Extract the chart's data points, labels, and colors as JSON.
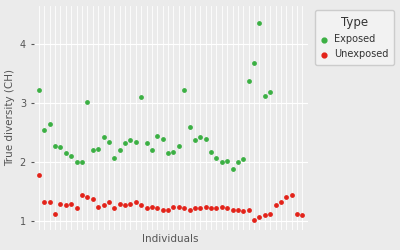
{
  "exposed_x": [
    1,
    2,
    3,
    4,
    5,
    6,
    7,
    8,
    9,
    10,
    11,
    12,
    13,
    14,
    15,
    16,
    17,
    18,
    19,
    20,
    21,
    22,
    23,
    24,
    25,
    26,
    27,
    28,
    29,
    30,
    31,
    32,
    33,
    34,
    35,
    36,
    37,
    38,
    39,
    40,
    41,
    42,
    43,
    44
  ],
  "exposed_y": [
    3.22,
    2.55,
    2.65,
    2.28,
    2.25,
    2.15,
    2.1,
    2.0,
    2.0,
    3.02,
    2.2,
    2.22,
    2.42,
    2.35,
    2.08,
    2.2,
    2.32,
    2.38,
    2.35,
    3.1,
    2.32,
    2.2,
    2.45,
    2.4,
    2.15,
    2.18,
    2.28,
    3.22,
    2.6,
    2.38,
    2.42,
    2.4,
    2.18,
    2.08,
    2.0,
    2.02,
    1.88,
    2.0,
    2.05,
    3.38,
    3.68,
    4.35,
    3.12,
    3.18
  ],
  "unexposed_x": [
    1,
    2,
    3,
    4,
    5,
    6,
    7,
    8,
    9,
    10,
    11,
    12,
    13,
    14,
    15,
    16,
    17,
    18,
    19,
    20,
    21,
    22,
    23,
    24,
    25,
    26,
    27,
    28,
    29,
    30,
    31,
    32,
    33,
    34,
    35,
    36,
    37,
    38,
    39,
    40,
    41,
    42,
    43,
    44,
    45,
    46,
    47,
    48,
    49,
    50
  ],
  "unexposed_y": [
    1.78,
    1.32,
    1.32,
    1.12,
    1.3,
    1.28,
    1.3,
    1.22,
    1.45,
    1.42,
    1.38,
    1.25,
    1.28,
    1.32,
    1.22,
    1.3,
    1.28,
    1.3,
    1.32,
    1.28,
    1.22,
    1.25,
    1.22,
    1.2,
    1.2,
    1.25,
    1.25,
    1.22,
    1.2,
    1.22,
    1.22,
    1.25,
    1.22,
    1.22,
    1.25,
    1.22,
    1.2,
    1.2,
    1.18,
    1.2,
    1.02,
    1.08,
    1.1,
    1.12,
    1.28,
    1.32,
    1.42,
    1.45,
    1.12,
    1.1
  ],
  "exposed_color": "#3cb044",
  "unexposed_color": "#e3231a",
  "ylabel": "True diversity (CH)",
  "xlabel": "Individuals",
  "legend_title": "Type",
  "legend_exposed": "Exposed",
  "legend_unexposed": "Unexposed",
  "ylim_min": 0.85,
  "ylim_max": 4.65,
  "yticks": [
    1,
    2,
    3,
    4
  ],
  "bg_color": "#ebebeb",
  "panel_bg": "#ebebeb",
  "grid_color": "#ffffff",
  "marker_size": 12
}
